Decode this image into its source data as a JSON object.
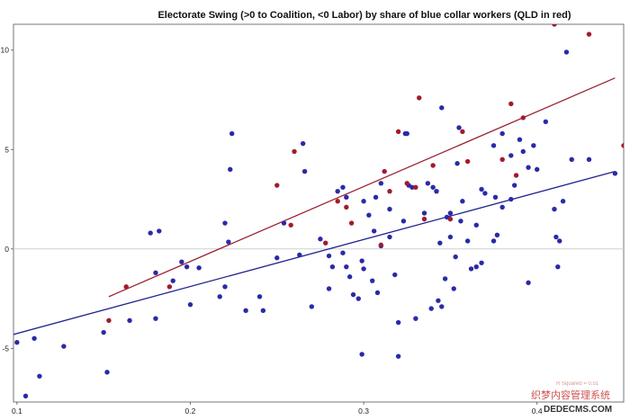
{
  "colors": {
    "qld": "#a31a2e",
    "other": "#2a2aa8",
    "qld_line": "#9b2335",
    "other_line": "#23238f",
    "zero_line": "#cfcfcf",
    "axis": "#555555"
  },
  "watermark": {
    "small_text": "R Squared = 0.51",
    "main_text": "织梦内容管理系统",
    "url_text": "DEDECMS.COM"
  },
  "chart_data": {
    "type": "scatter",
    "title": "Electorate Swing (>0 to Coalition, <0 Labor) by share of blue collar workers (QLD in red)",
    "xlabel": "",
    "ylabel": "",
    "xlim": [
      0.098,
      0.45
    ],
    "ylim": [
      -7.7,
      11.3
    ],
    "x_ticks": [
      0.1,
      0.2,
      0.3,
      0.4
    ],
    "x_tick_labels": [
      "0.1",
      "0.2",
      "0.3",
      "0.4"
    ],
    "y_ticks": [
      -5,
      0,
      5,
      10
    ],
    "y_tick_labels": [
      "-5",
      "0",
      "5",
      "10"
    ],
    "grid": false,
    "zero_line": true,
    "series": [
      {
        "key": "other",
        "values": [
          [
            0.1,
            -4.7
          ],
          [
            0.105,
            -7.4
          ],
          [
            0.11,
            -4.5
          ],
          [
            0.113,
            -6.4
          ],
          [
            0.127,
            -4.9
          ],
          [
            0.15,
            -4.2
          ],
          [
            0.152,
            -6.2
          ],
          [
            0.165,
            -3.6
          ],
          [
            0.177,
            0.8
          ],
          [
            0.18,
            -1.2
          ],
          [
            0.182,
            0.9
          ],
          [
            0.18,
            -3.5
          ],
          [
            0.19,
            -1.6
          ],
          [
            0.195,
            -0.65
          ],
          [
            0.198,
            -0.9
          ],
          [
            0.2,
            -2.8
          ],
          [
            0.205,
            -0.95
          ],
          [
            0.217,
            -2.4
          ],
          [
            0.22,
            1.3
          ],
          [
            0.22,
            -1.9
          ],
          [
            0.222,
            0.35
          ],
          [
            0.223,
            4.0
          ],
          [
            0.224,
            5.8
          ],
          [
            0.232,
            -3.1
          ],
          [
            0.24,
            -2.4
          ],
          [
            0.242,
            -3.1
          ],
          [
            0.25,
            -0.45
          ],
          [
            0.254,
            1.3
          ],
          [
            0.263,
            -0.3
          ],
          [
            0.265,
            5.3
          ],
          [
            0.266,
            3.9
          ],
          [
            0.27,
            -2.9
          ],
          [
            0.275,
            0.5
          ],
          [
            0.28,
            -2.0
          ],
          [
            0.28,
            -0.35
          ],
          [
            0.282,
            -0.9
          ],
          [
            0.285,
            2.9
          ],
          [
            0.288,
            3.1
          ],
          [
            0.288,
            -0.2
          ],
          [
            0.29,
            2.6
          ],
          [
            0.29,
            -0.9
          ],
          [
            0.292,
            -1.4
          ],
          [
            0.294,
            -2.3
          ],
          [
            0.297,
            -2.5
          ],
          [
            0.3,
            -1.0
          ],
          [
            0.299,
            -0.6
          ],
          [
            0.299,
            -5.3
          ],
          [
            0.3,
            2.4
          ],
          [
            0.303,
            1.7
          ],
          [
            0.305,
            -1.6
          ],
          [
            0.306,
            0.9
          ],
          [
            0.307,
            2.6
          ],
          [
            0.308,
            -2.2
          ],
          [
            0.31,
            0.15
          ],
          [
            0.31,
            3.3
          ],
          [
            0.315,
            0.6
          ],
          [
            0.315,
            2.0
          ],
          [
            0.318,
            -1.3
          ],
          [
            0.32,
            -3.7
          ],
          [
            0.32,
            -5.4
          ],
          [
            0.323,
            1.4
          ],
          [
            0.324,
            5.8
          ],
          [
            0.325,
            5.8
          ],
          [
            0.326,
            3.2
          ],
          [
            0.328,
            3.1
          ],
          [
            0.33,
            -3.5
          ],
          [
            0.335,
            1.8
          ],
          [
            0.337,
            3.3
          ],
          [
            0.339,
            -3.0
          ],
          [
            0.34,
            3.1
          ],
          [
            0.342,
            2.9
          ],
          [
            0.343,
            -2.6
          ],
          [
            0.344,
            0.3
          ],
          [
            0.345,
            7.1
          ],
          [
            0.345,
            -2.9
          ],
          [
            0.347,
            -1.5
          ],
          [
            0.348,
            1.6
          ],
          [
            0.35,
            0.6
          ],
          [
            0.35,
            1.8
          ],
          [
            0.352,
            -2.0
          ],
          [
            0.353,
            -0.4
          ],
          [
            0.354,
            4.3
          ],
          [
            0.355,
            6.1
          ],
          [
            0.356,
            1.4
          ],
          [
            0.357,
            2.4
          ],
          [
            0.36,
            0.4
          ],
          [
            0.362,
            -1.0
          ],
          [
            0.365,
            1.2
          ],
          [
            0.365,
            -0.9
          ],
          [
            0.368,
            -0.7
          ],
          [
            0.368,
            3.0
          ],
          [
            0.37,
            2.8
          ],
          [
            0.375,
            5.2
          ],
          [
            0.375,
            0.4
          ],
          [
            0.376,
            2.6
          ],
          [
            0.377,
            0.7
          ],
          [
            0.38,
            5.8
          ],
          [
            0.38,
            2.1
          ],
          [
            0.385,
            2.5
          ],
          [
            0.385,
            4.7
          ],
          [
            0.387,
            3.2
          ],
          [
            0.39,
            5.5
          ],
          [
            0.392,
            4.9
          ],
          [
            0.395,
            4.1
          ],
          [
            0.395,
            -1.7
          ],
          [
            0.398,
            5.2
          ],
          [
            0.4,
            4.0
          ],
          [
            0.405,
            6.4
          ],
          [
            0.41,
            2.0
          ],
          [
            0.411,
            0.6
          ],
          [
            0.412,
            -0.9
          ],
          [
            0.413,
            0.4
          ],
          [
            0.415,
            2.4
          ],
          [
            0.417,
            9.9
          ],
          [
            0.42,
            4.5
          ],
          [
            0.43,
            4.5
          ],
          [
            0.445,
            3.8
          ]
        ]
      },
      {
        "key": "qld",
        "values": [
          [
            0.153,
            -3.6
          ],
          [
            0.163,
            -1.9
          ],
          [
            0.188,
            -1.9
          ],
          [
            0.25,
            3.2
          ],
          [
            0.258,
            1.2
          ],
          [
            0.26,
            4.9
          ],
          [
            0.278,
            0.3
          ],
          [
            0.285,
            2.4
          ],
          [
            0.29,
            2.1
          ],
          [
            0.293,
            1.3
          ],
          [
            0.31,
            0.2
          ],
          [
            0.312,
            3.9
          ],
          [
            0.315,
            2.9
          ],
          [
            0.32,
            5.9
          ],
          [
            0.325,
            3.3
          ],
          [
            0.33,
            3.1
          ],
          [
            0.332,
            7.6
          ],
          [
            0.335,
            1.5
          ],
          [
            0.34,
            4.2
          ],
          [
            0.35,
            1.5
          ],
          [
            0.357,
            5.9
          ],
          [
            0.36,
            4.4
          ],
          [
            0.38,
            4.5
          ],
          [
            0.385,
            7.3
          ],
          [
            0.388,
            3.7
          ],
          [
            0.392,
            6.6
          ],
          [
            0.41,
            11.3
          ],
          [
            0.43,
            10.8
          ],
          [
            0.45,
            5.2
          ]
        ]
      }
    ],
    "fit_lines": [
      {
        "key": "qld",
        "x": [
          0.153,
          0.445
        ],
        "y": [
          -2.4,
          8.6
        ]
      },
      {
        "key": "other",
        "x": [
          0.098,
          0.445
        ],
        "y": [
          -4.3,
          3.9
        ]
      }
    ]
  }
}
